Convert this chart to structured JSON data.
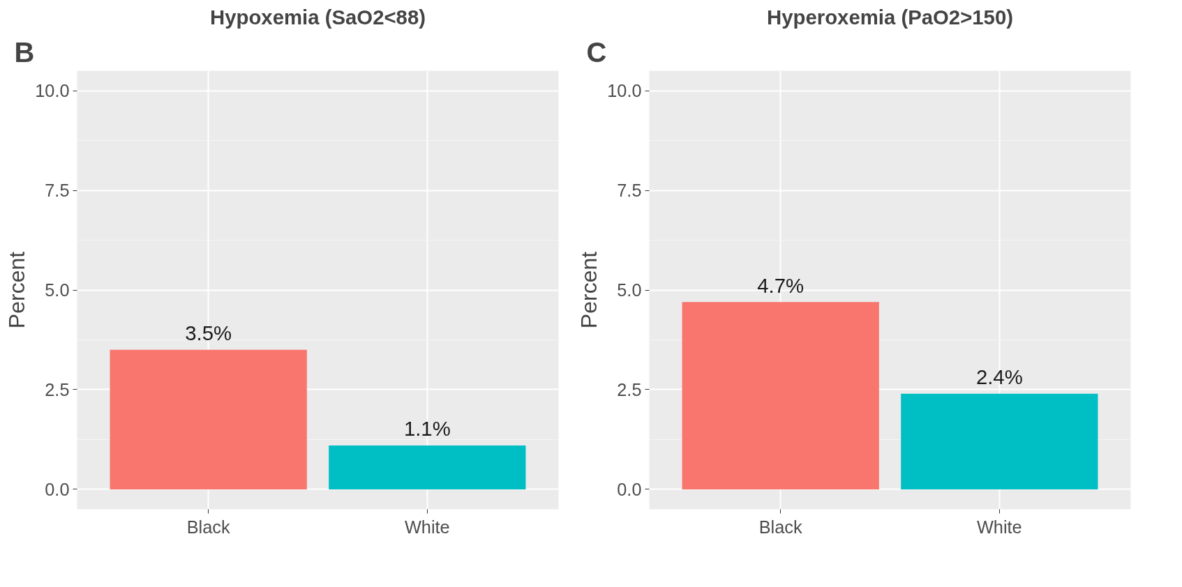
{
  "chart_data": [
    {
      "type": "bar",
      "title": "Hypoxemia (SaO2<88)",
      "ylabel": "Percent",
      "annotations": [
        "B"
      ],
      "categories": [
        "Black",
        "White"
      ],
      "values": [
        3.5,
        1.1
      ],
      "colors": [
        "#f8766d",
        "#00bfc4"
      ],
      "value_labels": [
        "3.5%",
        "1.1%"
      ],
      "ylim": [
        -0.5,
        10.5
      ],
      "yticks": [
        {
          "value": 0,
          "label": "0.0"
        },
        {
          "value": 2.5,
          "label": "2.5"
        },
        {
          "value": 5,
          "label": "5.0"
        },
        {
          "value": 7.5,
          "label": "7.5"
        },
        {
          "value": 10,
          "label": "10.0"
        }
      ],
      "grid": true
    },
    {
      "type": "bar",
      "title": "Hyperoxemia (PaO2>150)",
      "ylabel": "Percent",
      "annotations": [
        "C"
      ],
      "categories": [
        "Black",
        "White"
      ],
      "values": [
        4.7,
        2.4
      ],
      "colors": [
        "#f8766d",
        "#00bfc4"
      ],
      "value_labels": [
        "4.7%",
        "2.4%"
      ],
      "ylim": [
        -0.5,
        10.5
      ],
      "yticks": [
        {
          "value": 0,
          "label": "0.0"
        },
        {
          "value": 2.5,
          "label": "2.5"
        },
        {
          "value": 5,
          "label": "5.0"
        },
        {
          "value": 7.5,
          "label": "7.5"
        },
        {
          "value": 10,
          "label": "10.0"
        }
      ],
      "grid": true
    }
  ]
}
